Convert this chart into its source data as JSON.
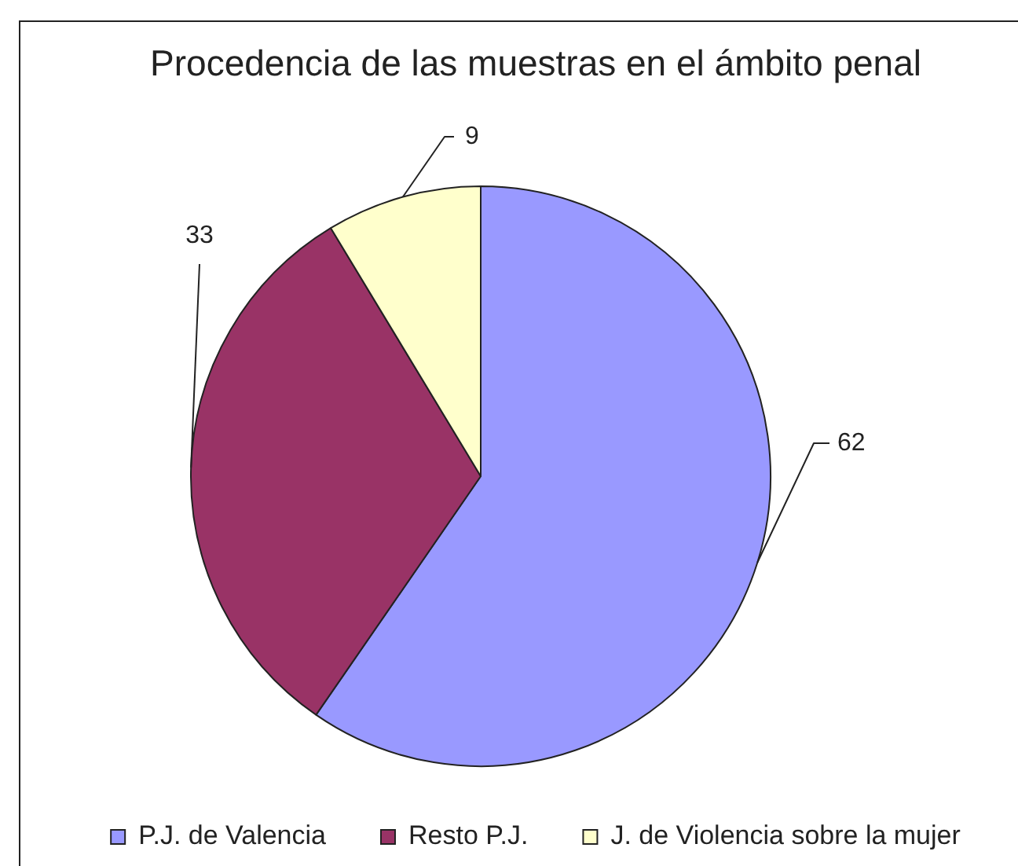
{
  "chart_data": {
    "type": "pie",
    "title": "Procedencia de las muestras en el ámbito penal",
    "categories": [
      "P.J. de Valencia",
      "Resto P.J.",
      "J. de Violencia sobre la mujer"
    ],
    "values": [
      62,
      33,
      9
    ],
    "colors": [
      "#9999ff",
      "#993366",
      "#ffffcc"
    ],
    "data_labels": true,
    "legend": "bottom"
  }
}
